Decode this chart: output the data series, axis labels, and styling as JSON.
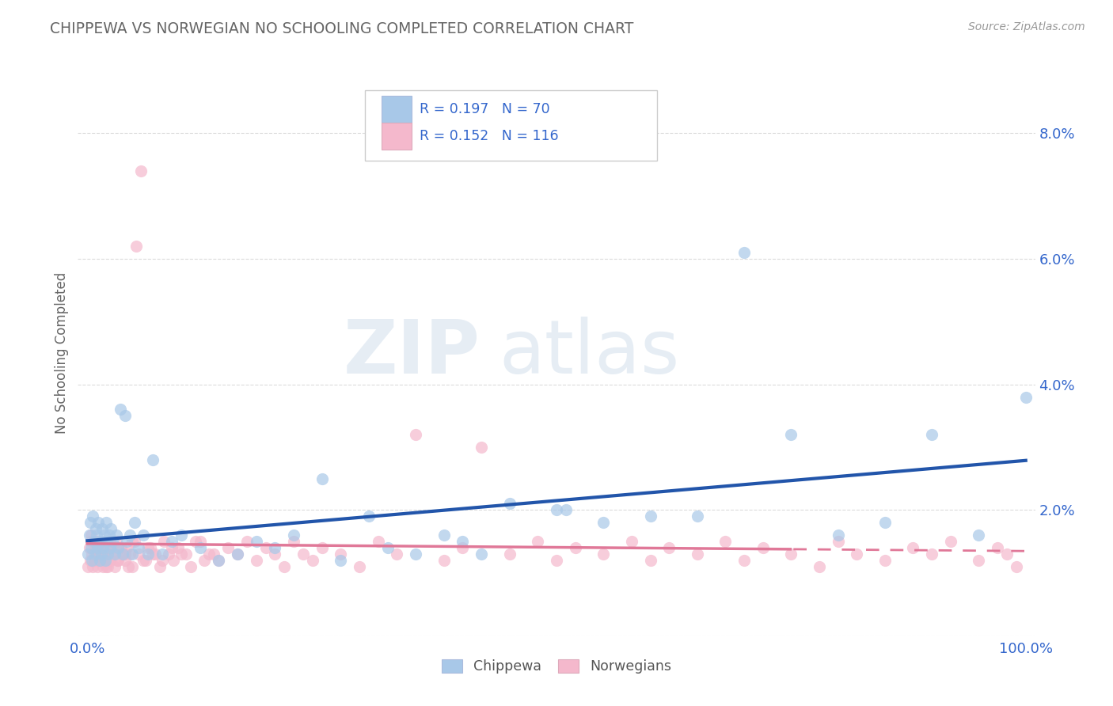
{
  "title": "CHIPPEWA VS NORWEGIAN NO SCHOOLING COMPLETED CORRELATION CHART",
  "source": "Source: ZipAtlas.com",
  "ylabel": "No Schooling Completed",
  "chippewa_color": "#a8c8e8",
  "norwegian_color": "#f4b8cc",
  "chippewa_line_color": "#2255aa",
  "norwegian_line_color": "#e07898",
  "background_color": "#ffffff",
  "grid_color": "#cccccc",
  "title_color": "#666666",
  "r_n_color": "#3366cc",
  "tick_color": "#3366cc",
  "xlim": [
    -0.01,
    1.01
  ],
  "ylim": [
    0.0,
    0.09
  ],
  "right_yticks": [
    0.0,
    0.02,
    0.04,
    0.06,
    0.08
  ],
  "right_ytick_labels": [
    "",
    "2.0%",
    "4.0%",
    "6.0%",
    "8.0%"
  ],
  "xtick_positions": [
    0.0,
    1.0
  ],
  "xtick_labels": [
    "0.0%",
    "100.0%"
  ],
  "legend_r1": "R = 0.197",
  "legend_n1": "N = 70",
  "legend_r2": "R = 0.152",
  "legend_n2": "N = 116",
  "legend_color1": "#a8c8e8",
  "legend_color2": "#f4b8cc",
  "watermark_text": "ZIPatlas",
  "bottom_legend": [
    "Chippewa",
    "Norwegians"
  ],
  "chippewa_x": [
    0.001,
    0.002,
    0.003,
    0.004,
    0.005,
    0.006,
    0.007,
    0.008,
    0.009,
    0.01,
    0.011,
    0.012,
    0.013,
    0.014,
    0.015,
    0.016,
    0.017,
    0.018,
    0.019,
    0.02,
    0.021,
    0.022,
    0.023,
    0.024,
    0.025,
    0.027,
    0.029,
    0.031,
    0.033,
    0.035,
    0.038,
    0.04,
    0.042,
    0.045,
    0.048,
    0.05,
    0.055,
    0.06,
    0.065,
    0.07,
    0.08,
    0.09,
    0.1,
    0.12,
    0.14,
    0.16,
    0.18,
    0.2,
    0.22,
    0.25,
    0.27,
    0.3,
    0.32,
    0.35,
    0.38,
    0.4,
    0.42,
    0.45,
    0.5,
    0.55,
    0.6,
    0.65,
    0.7,
    0.75,
    0.8,
    0.85,
    0.9,
    0.95,
    1.0,
    0.51
  ],
  "chippewa_y": [
    0.013,
    0.016,
    0.018,
    0.014,
    0.012,
    0.019,
    0.015,
    0.013,
    0.017,
    0.016,
    0.014,
    0.018,
    0.012,
    0.015,
    0.013,
    0.017,
    0.014,
    0.016,
    0.012,
    0.018,
    0.015,
    0.013,
    0.016,
    0.014,
    0.017,
    0.015,
    0.013,
    0.016,
    0.014,
    0.036,
    0.013,
    0.035,
    0.015,
    0.016,
    0.013,
    0.018,
    0.014,
    0.016,
    0.013,
    0.028,
    0.013,
    0.015,
    0.016,
    0.014,
    0.012,
    0.013,
    0.015,
    0.014,
    0.016,
    0.025,
    0.012,
    0.019,
    0.014,
    0.013,
    0.016,
    0.015,
    0.013,
    0.021,
    0.02,
    0.018,
    0.019,
    0.019,
    0.061,
    0.032,
    0.016,
    0.018,
    0.032,
    0.016,
    0.038,
    0.02
  ],
  "norwegian_x": [
    0.001,
    0.002,
    0.003,
    0.004,
    0.005,
    0.006,
    0.007,
    0.008,
    0.009,
    0.01,
    0.011,
    0.012,
    0.013,
    0.014,
    0.015,
    0.016,
    0.017,
    0.018,
    0.019,
    0.02,
    0.021,
    0.022,
    0.023,
    0.024,
    0.025,
    0.027,
    0.029,
    0.031,
    0.033,
    0.035,
    0.038,
    0.04,
    0.042,
    0.045,
    0.048,
    0.05,
    0.055,
    0.06,
    0.065,
    0.07,
    0.08,
    0.09,
    0.1,
    0.11,
    0.12,
    0.13,
    0.14,
    0.15,
    0.16,
    0.17,
    0.18,
    0.19,
    0.2,
    0.21,
    0.22,
    0.23,
    0.24,
    0.25,
    0.27,
    0.29,
    0.31,
    0.33,
    0.35,
    0.38,
    0.4,
    0.42,
    0.45,
    0.48,
    0.5,
    0.52,
    0.55,
    0.58,
    0.6,
    0.62,
    0.65,
    0.68,
    0.7,
    0.72,
    0.75,
    0.78,
    0.8,
    0.82,
    0.85,
    0.88,
    0.9,
    0.92,
    0.95,
    0.97,
    0.98,
    0.99,
    0.004,
    0.008,
    0.012,
    0.016,
    0.02,
    0.024,
    0.028,
    0.032,
    0.036,
    0.04,
    0.044,
    0.048,
    0.052,
    0.057,
    0.062,
    0.067,
    0.072,
    0.077,
    0.082,
    0.087,
    0.092,
    0.097,
    0.105,
    0.115,
    0.125,
    0.135
  ],
  "norwegian_y": [
    0.011,
    0.014,
    0.012,
    0.016,
    0.013,
    0.011,
    0.015,
    0.012,
    0.014,
    0.013,
    0.011,
    0.015,
    0.013,
    0.012,
    0.014,
    0.013,
    0.011,
    0.015,
    0.012,
    0.014,
    0.013,
    0.011,
    0.015,
    0.012,
    0.014,
    0.013,
    0.011,
    0.015,
    0.012,
    0.014,
    0.013,
    0.012,
    0.014,
    0.013,
    0.011,
    0.015,
    0.013,
    0.012,
    0.014,
    0.013,
    0.012,
    0.014,
    0.013,
    0.011,
    0.015,
    0.013,
    0.012,
    0.014,
    0.013,
    0.015,
    0.012,
    0.014,
    0.013,
    0.011,
    0.015,
    0.013,
    0.012,
    0.014,
    0.013,
    0.011,
    0.015,
    0.013,
    0.032,
    0.012,
    0.014,
    0.03,
    0.013,
    0.015,
    0.012,
    0.014,
    0.013,
    0.015,
    0.012,
    0.014,
    0.013,
    0.015,
    0.012,
    0.014,
    0.013,
    0.011,
    0.015,
    0.013,
    0.012,
    0.014,
    0.013,
    0.015,
    0.012,
    0.014,
    0.013,
    0.011,
    0.015,
    0.012,
    0.013,
    0.014,
    0.011,
    0.015,
    0.013,
    0.012,
    0.014,
    0.013,
    0.011,
    0.015,
    0.062,
    0.074,
    0.012,
    0.014,
    0.013,
    0.011,
    0.015,
    0.013,
    0.012,
    0.014,
    0.013,
    0.015,
    0.012,
    0.013
  ]
}
